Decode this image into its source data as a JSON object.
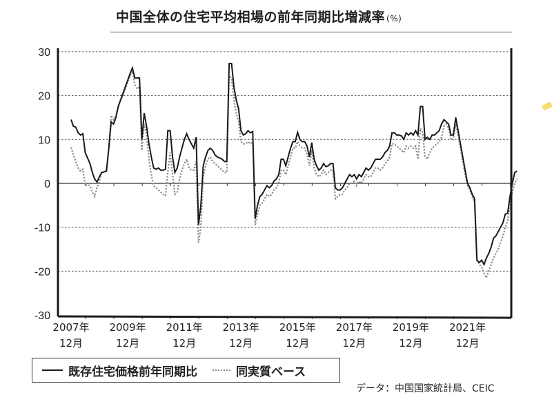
{
  "title": {
    "text": "中国全体の住宅平均相場の前年同期比増減率",
    "unit": "(%)"
  },
  "legend": {
    "series1_label": "既存住宅価格前年同期比",
    "series2_label": "同実質ベース"
  },
  "source": "データ：中国国家統計局、CEIC",
  "colors": {
    "series1": "#1a1a1a",
    "series2": "#8a8a8a",
    "grid": "#555555",
    "accent_marker": "#f3d34a"
  },
  "axis": {
    "y_ticks": [
      "30",
      "20",
      "10",
      "0",
      "-10",
      "-20",
      "-30"
    ],
    "x_ticks": [
      {
        "year": "2007年",
        "month": "12月"
      },
      {
        "year": "2009年",
        "month": "12月"
      },
      {
        "year": "2011年",
        "month": "12月"
      },
      {
        "year": "2013年",
        "month": "12月"
      },
      {
        "year": "2015年",
        "month": "12月"
      },
      {
        "year": "2017年",
        "month": "12月"
      },
      {
        "year": "2019年",
        "month": "12月"
      },
      {
        "year": "2021年",
        "month": "12月"
      }
    ]
  },
  "chart_data": {
    "type": "line",
    "title": "中国全体の住宅平均相場の前年同期比増減率 (%)",
    "xlabel": "",
    "ylabel": "%",
    "ylim": [
      -30,
      30
    ],
    "yticks": [
      -30,
      -20,
      -10,
      0,
      10,
      20,
      30
    ],
    "grid": "horizontal dotted at ±10, ±20, 30; solid line at 0",
    "legend_position": "bottom (boxed)",
    "x_tick_labels": [
      "2007年12月",
      "2009年12月",
      "2011年12月",
      "2013年12月",
      "2015年12月",
      "2017年12月",
      "2019年12月",
      "2021年12月"
    ],
    "x_unit": "months since 2007-12 (approx, quarterly samples)",
    "x": [
      0,
      1,
      2,
      3,
      4,
      5,
      6,
      7,
      8,
      9,
      10,
      11,
      12,
      13,
      14,
      15,
      16,
      17,
      18,
      19,
      20,
      21,
      22,
      23,
      24,
      25,
      26,
      27,
      28,
      29,
      30,
      31,
      32,
      33,
      34,
      35,
      36,
      37,
      38,
      39,
      40,
      41,
      42,
      43,
      44,
      45,
      46,
      47,
      48,
      49,
      50,
      51,
      52,
      53,
      54,
      55,
      56,
      57,
      58,
      59,
      60,
      61,
      62,
      63,
      64,
      65,
      66,
      67,
      68,
      69,
      70,
      71,
      72,
      73,
      74,
      75,
      76,
      77,
      78,
      79,
      80,
      81,
      82,
      83,
      84,
      85,
      86,
      87,
      88,
      89,
      90,
      91,
      92,
      93,
      94,
      95,
      96,
      97,
      98,
      99,
      100,
      101,
      102,
      103,
      104,
      105,
      106,
      107,
      108,
      109,
      110,
      111,
      112,
      113,
      114,
      115,
      116,
      117,
      118,
      119,
      120,
      121,
      122,
      123,
      124,
      125,
      126,
      127,
      128,
      129,
      130,
      131,
      132,
      133,
      134,
      135,
      136,
      137,
      138,
      139,
      140,
      141,
      142,
      143,
      144,
      145,
      146,
      147,
      148,
      149,
      150,
      151,
      152,
      153,
      154,
      155,
      156,
      157,
      158,
      159,
      160,
      161,
      162,
      163,
      164,
      165,
      166,
      167,
      168,
      169,
      170,
      171,
      172,
      173,
      174,
      175,
      176,
      177,
      178,
      179,
      180,
      181,
      182,
      183,
      184,
      185,
      186,
      187,
      188,
      189,
      190,
      191
    ],
    "series": [
      {
        "name": "既存住宅価格前年同期比",
        "style": "solid",
        "values": [
          14.5,
          13.0,
          12.8,
          11.5,
          11.0,
          11.3,
          7.0,
          5.8,
          4.5,
          2.5,
          1.0,
          0.3,
          1.5,
          2.5,
          2.6,
          2.8,
          8.0,
          14.0,
          13.5,
          15.0,
          17.5,
          19.0,
          20.5,
          22.0,
          23.5,
          25.0,
          26.3,
          24.0,
          24.0,
          24.0,
          10.0,
          16.0,
          13.0,
          9.0,
          6.0,
          3.5,
          3.2,
          3.5,
          3.0,
          3.0,
          3.2,
          12.0,
          12.0,
          6.0,
          2.5,
          3.5,
          6.0,
          8.0,
          10.0,
          11.3,
          10.0,
          9.0,
          8.0,
          10.5,
          -9.5,
          -5.0,
          4.0,
          6.0,
          7.5,
          8.0,
          7.5,
          6.5,
          6.0,
          5.8,
          5.5,
          5.0,
          5.0,
          27.3,
          27.3,
          22.0,
          19.0,
          17.0,
          12.0,
          11.0,
          11.3,
          12.0,
          11.5,
          11.8,
          -8.0,
          -5.0,
          -3.0,
          -2.5,
          -1.5,
          -0.5,
          -1.0,
          -0.5,
          0.5,
          1.0,
          2.0,
          5.5,
          5.5,
          4.0,
          6.0,
          8.0,
          9.5,
          9.5,
          11.6,
          10.0,
          9.5,
          9.5,
          8.5,
          6.0,
          9.3,
          5.5,
          4.0,
          3.0,
          3.5,
          4.5,
          3.8,
          4.0,
          4.5,
          4.5,
          -1.0,
          -1.5,
          -1.5,
          -1.0,
          0.0,
          1.0,
          2.0,
          1.5,
          2.0,
          1.0,
          2.0,
          1.5,
          2.5,
          3.5,
          3.0,
          3.5,
          4.5,
          5.5,
          5.5,
          5.5,
          6.0,
          7.0,
          7.5,
          8.5,
          11.5,
          11.5,
          11.0,
          11.0,
          10.8,
          10.0,
          11.5,
          11.0,
          11.5,
          11.0,
          12.0,
          11.0,
          17.5,
          17.5,
          10.0,
          10.5,
          10.0,
          11.0,
          11.0,
          11.5,
          12.0,
          13.5,
          14.5,
          14.0,
          13.5,
          11.0,
          11.0,
          15.0,
          12.0,
          9.0,
          6.0,
          3.0,
          0.0,
          -1.0,
          -2.5,
          -3.5,
          -17.5,
          -18.0,
          -17.5,
          -18.5,
          -17.0,
          -16.0,
          -14.5,
          -12.5,
          -12.0,
          -11.0,
          -10.0,
          -9.0,
          -7.0,
          -6.8,
          -3.0,
          0.0,
          2.5,
          2.8
        ]
      },
      {
        "name": "同実質ベース",
        "style": "dotted",
        "values": [
          8.2,
          6.5,
          5.0,
          3.5,
          2.8,
          3.2,
          -0.5,
          -0.3,
          -0.5,
          -2.0,
          -3.0,
          -1.0,
          0.5,
          2.5,
          2.5,
          3.0,
          8.0,
          15.5,
          14.5,
          15.5,
          17.5,
          19.0,
          20.0,
          21.5,
          23.0,
          24.5,
          25.5,
          22.5,
          21.5,
          22.0,
          7.5,
          13.5,
          11.0,
          5.5,
          2.0,
          -0.5,
          -1.0,
          -1.5,
          -2.0,
          -2.5,
          -2.8,
          2.5,
          7.0,
          2.0,
          -2.5,
          -2.0,
          1.0,
          3.0,
          4.5,
          5.5,
          3.5,
          3.0,
          3.0,
          5.0,
          -13.5,
          -10.0,
          1.5,
          4.0,
          5.5,
          6.0,
          5.0,
          4.5,
          4.0,
          3.5,
          3.0,
          2.5,
          2.5,
          24.5,
          24.0,
          19.0,
          16.0,
          14.0,
          9.5,
          9.0,
          9.0,
          9.5,
          9.0,
          9.5,
          -9.5,
          -7.0,
          -5.0,
          -4.5,
          -3.5,
          -2.5,
          -3.0,
          -2.5,
          -1.5,
          -1.0,
          0.0,
          3.0,
          3.0,
          2.0,
          4.0,
          6.0,
          8.0,
          8.0,
          9.5,
          8.5,
          8.0,
          8.0,
          6.5,
          4.0,
          7.5,
          3.5,
          2.0,
          1.5,
          2.0,
          3.0,
          2.0,
          2.5,
          3.0,
          3.0,
          -3.5,
          -3.0,
          -2.5,
          -2.5,
          -1.5,
          -1.0,
          0.0,
          0.0,
          0.5,
          -0.5,
          0.5,
          0.0,
          1.0,
          2.0,
          1.5,
          1.5,
          2.5,
          3.5,
          3.5,
          3.0,
          3.5,
          4.5,
          5.0,
          6.0,
          9.0,
          9.0,
          8.5,
          8.0,
          7.5,
          7.0,
          8.5,
          8.0,
          8.5,
          8.0,
          8.5,
          5.5,
          12.5,
          11.5,
          6.0,
          5.5,
          7.0,
          8.0,
          8.5,
          9.0,
          9.5,
          10.5,
          13.0,
          13.5,
          12.5,
          10.0,
          10.0,
          13.5,
          11.0,
          8.0,
          5.0,
          2.0,
          -0.5,
          -1.5,
          -3.0,
          -4.5,
          -17.5,
          -18.5,
          -19.0,
          -20.5,
          -21.5,
          -20.0,
          -18.5,
          -17.0,
          -16.0,
          -15.0,
          -13.5,
          -12.0,
          -10.0,
          -8.5,
          -5.0,
          -2.0,
          0.0,
          1.0
        ]
      }
    ]
  }
}
